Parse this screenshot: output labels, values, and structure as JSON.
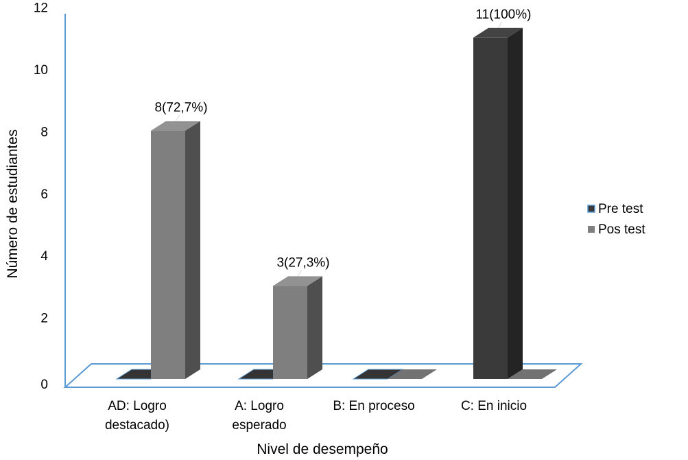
{
  "chart_data": {
    "type": "bar",
    "title": "",
    "xlabel": "Nivel de desempeño",
    "ylabel": "Número de estudiantes",
    "ylim": [
      0,
      12
    ],
    "yticks": [
      0,
      2,
      4,
      6,
      8,
      10,
      12
    ],
    "grid": false,
    "legend_position": "right",
    "categories": [
      [
        "AD: Logro",
        "destacado)"
      ],
      [
        "A: Logro",
        "esperado"
      ],
      [
        "B: En proceso"
      ],
      [
        "C: En inicio"
      ]
    ],
    "series": [
      {
        "name": "Pre test",
        "values": [
          0,
          0,
          0,
          11
        ],
        "labels": [
          "",
          "",
          "",
          "11(100%)"
        ],
        "color": "#3a3a3a"
      },
      {
        "name": "Pos test",
        "values": [
          8,
          3,
          0,
          0
        ],
        "labels": [
          "8(72,7%)",
          "3(27,3%)",
          "",
          ""
        ],
        "color": "#7f7f7f"
      }
    ],
    "axis_color": "#5b9bd5"
  }
}
